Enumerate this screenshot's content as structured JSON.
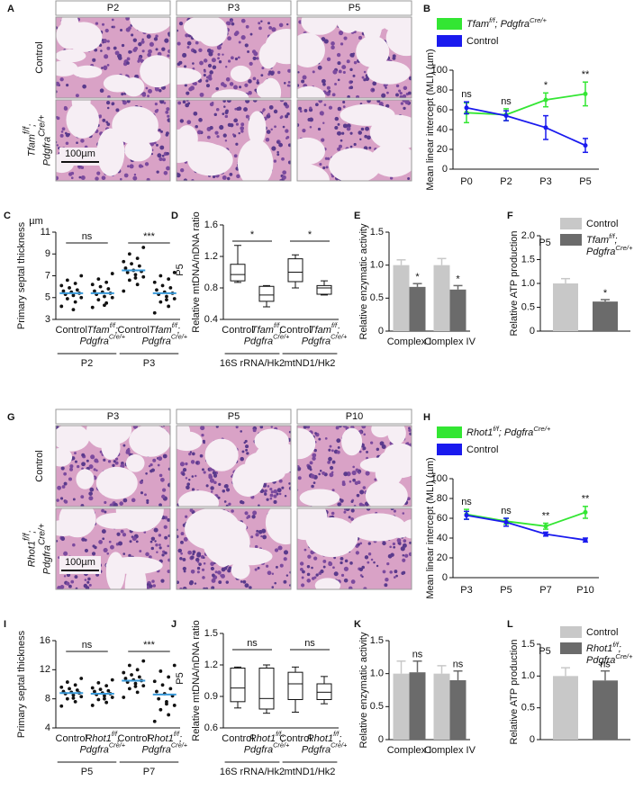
{
  "histology": [
    {
      "letter": "A",
      "columns": [
        "P2",
        "P3",
        "P5"
      ],
      "rows": [
        "Control",
        [
          [
            "Tfam",
            "f/f",
            ";"
          ],
          [
            "Pdgfra",
            "Cre/+"
          ]
        ]
      ],
      "scale_bar": "100µm"
    },
    {
      "letter": "G",
      "columns": [
        "P3",
        "P5",
        "P10"
      ],
      "rows": [
        "Control",
        [
          [
            "Rhot1",
            "f/f",
            ";"
          ],
          [
            "Pdgfra",
            "Cre/+"
          ]
        ]
      ],
      "scale_bar": "100µm"
    }
  ],
  "chart_data": [
    {
      "type": "line",
      "letter": "B",
      "y_label": "Mean linear intercept (MLI) (µm)",
      "categories": [
        "P0",
        "P2",
        "P3",
        "P5"
      ],
      "ylim": [
        0,
        100
      ],
      "yticks": [
        0,
        20,
        40,
        60,
        80,
        100
      ],
      "series": [
        {
          "name": [
            [
              "Tfam",
              "f/f",
              "; Pdgfra",
              "Cre/+"
            ]
          ],
          "color": "#33e633",
          "values": [
            57,
            55,
            70,
            76
          ],
          "errors": [
            10,
            6,
            7,
            12
          ]
        },
        {
          "name": "Control",
          "color": "#1a1aee",
          "values": [
            62,
            54,
            42,
            24
          ],
          "errors": [
            6,
            5,
            12,
            7
          ]
        }
      ],
      "significance": [
        "ns",
        "ns",
        "*",
        "**"
      ]
    },
    {
      "type": "strip",
      "letter": "C",
      "unit": "µm",
      "y_label": "Primary septal thickness",
      "ylim": [
        3,
        11
      ],
      "yticks": [
        3,
        5,
        7,
        9,
        11
      ],
      "point_color": "#111111",
      "mean_color": "#3a9ad9",
      "groups": [
        {
          "name": "P2",
          "categories": [
            "Control",
            [
              [
                "Tfam",
                "f/f",
                ";"
              ],
              [
                "Pdgfra",
                "Cre/+"
              ]
            ]
          ],
          "significance": "ns",
          "means": [
            5.4,
            5.4
          ],
          "points": [
            [
              4.2,
              4.6,
              4.9,
              5.0,
              5.2,
              5.3,
              5.4,
              5.5,
              5.6,
              5.7,
              5.9,
              6.1,
              6.3,
              6.6,
              7.0,
              3.9
            ],
            [
              4.1,
              4.5,
              4.8,
              5.0,
              5.1,
              5.3,
              5.4,
              5.5,
              5.6,
              5.8,
              6.0,
              6.2,
              6.4,
              6.7,
              7.2,
              4.3
            ]
          ]
        },
        {
          "name": "P3",
          "categories": [
            "Control",
            [
              [
                "Tfam",
                "f/f",
                ";"
              ],
              [
                "Pdgfra",
                "Cre/+"
              ]
            ]
          ],
          "significance": "***",
          "means": [
            7.5,
            5.4
          ],
          "points": [
            [
              5.6,
              6.2,
              6.6,
              6.9,
              7.1,
              7.3,
              7.4,
              7.5,
              7.7,
              7.9,
              8.1,
              8.3,
              8.6,
              9.0,
              9.6,
              6.8
            ],
            [
              3.6,
              4.2,
              4.6,
              4.9,
              5.1,
              5.3,
              5.4,
              5.5,
              5.7,
              5.9,
              6.1,
              6.4,
              6.7,
              7.0,
              7.3,
              4.8
            ]
          ]
        }
      ]
    },
    {
      "type": "box",
      "letter": "D",
      "subtitle": "P5",
      "y_label": "Relative mtDNA/nDNA ratio",
      "ylim": [
        0.4,
        1.6
      ],
      "yticks": [
        0.4,
        0.8,
        1.2,
        1.6
      ],
      "groups": [
        {
          "name": "16S rRNA/Hk2",
          "categories": [
            "Control",
            [
              [
                "Tfam",
                "f/f",
                ";"
              ],
              [
                "Pdgfra",
                "Cre/+"
              ]
            ]
          ],
          "significance": "*",
          "boxes": [
            {
              "min": 0.87,
              "q1": 0.89,
              "median": 0.97,
              "q3": 1.1,
              "max": 1.34
            },
            {
              "min": 0.56,
              "q1": 0.63,
              "median": 0.71,
              "q3": 0.82,
              "max": 0.83
            }
          ]
        },
        {
          "name": "mtND1/Hk2",
          "categories": [
            "Control",
            [
              [
                "Tfam",
                "f/f",
                ";"
              ],
              [
                "Pdgfra",
                "Cre/+"
              ]
            ]
          ],
          "significance": "*",
          "boxes": [
            {
              "min": 0.8,
              "q1": 0.88,
              "median": 1.0,
              "q3": 1.17,
              "max": 1.22
            },
            {
              "min": 0.71,
              "q1": 0.72,
              "median": 0.8,
              "q3": 0.83,
              "max": 0.89
            }
          ]
        }
      ]
    },
    {
      "type": "bar",
      "letter": "E",
      "y_label": "Relative enzymatic activity",
      "categories": [
        "Complex I",
        "Complex IV"
      ],
      "ylim": [
        0,
        1.5
      ],
      "yticks": [
        0,
        0.5,
        {
          "value": 1,
          "label": "1.0"
        },
        1.5
      ],
      "series": [
        {
          "color": "#c8c8c8",
          "values": [
            1,
            1
          ],
          "errors": [
            0.08,
            0.1
          ]
        },
        {
          "color": "#6b6b6b",
          "values": [
            0.67,
            0.63
          ],
          "errors": [
            0.05,
            0.06
          ],
          "significance": [
            "*",
            "*"
          ]
        }
      ]
    },
    {
      "type": "bar",
      "letter": "F",
      "subtitle": "P5",
      "y_label": "Relative ATP production",
      "ylim": [
        0,
        2
      ],
      "yticks": [
        0,
        0.5,
        {
          "value": 1,
          "label": "1.0"
        },
        1.5,
        {
          "value": 2,
          "label": "2.0"
        }
      ],
      "series": [
        {
          "name": "Control",
          "color": "#c8c8c8",
          "values": [
            1
          ],
          "errors": [
            0.1
          ]
        },
        {
          "name": [
            [
              "Tfam",
              "f/f",
              ";"
            ],
            [
              "Pdgfra",
              "Cre/+"
            ]
          ],
          "color": "#6b6b6b",
          "values": [
            0.62
          ],
          "errors": [
            0.04
          ],
          "significance": [
            "*"
          ]
        }
      ]
    },
    {
      "type": "line",
      "letter": "H",
      "y_label": "Mean linear intercept (MLI) (µm)",
      "categories": [
        "P3",
        "P5",
        "P7",
        "P10"
      ],
      "ylim": [
        0,
        100
      ],
      "yticks": [
        0,
        20,
        40,
        60,
        80,
        100
      ],
      "series": [
        {
          "name": [
            [
              "Rhot1",
              "f/f",
              "; Pdgfra",
              "Cre/+"
            ]
          ],
          "color": "#33e633",
          "values": [
            64,
            57,
            52,
            66
          ],
          "errors": [
            5,
            3,
            3,
            6
          ]
        },
        {
          "name": "Control",
          "color": "#1a1aee",
          "values": [
            63,
            56,
            44,
            38
          ],
          "errors": [
            4,
            4,
            2,
            2
          ]
        }
      ],
      "significance": [
        "ns",
        "ns",
        "**",
        "**"
      ]
    },
    {
      "type": "strip",
      "letter": "I",
      "y_label": "Primary septal thickness",
      "ylim": [
        4,
        16
      ],
      "yticks": [
        4,
        8,
        12,
        16
      ],
      "point_color": "#111111",
      "mean_color": "#3a9ad9",
      "groups": [
        {
          "name": "P5",
          "categories": [
            "Control",
            [
              [
                "Rhot1",
                "f/f",
                ";"
              ],
              [
                "Pdgfra",
                "Cre/+"
              ]
            ]
          ],
          "significance": "ns",
          "means": [
            8.8,
            8.7
          ],
          "points": [
            [
              7.0,
              7.6,
              8.0,
              8.3,
              8.5,
              8.7,
              8.8,
              8.9,
              9.0,
              9.2,
              9.4,
              9.6,
              9.9,
              10.3,
              10.8,
              8.1
            ],
            [
              7.1,
              7.5,
              7.9,
              8.2,
              8.4,
              8.6,
              8.7,
              8.8,
              9.0,
              9.1,
              9.3,
              9.5,
              9.8,
              10.2,
              10.6,
              8.0
            ]
          ]
        },
        {
          "name": "P7",
          "categories": [
            "Control",
            [
              [
                "Rhot1",
                "f/f",
                ";"
              ],
              [
                "Pdgfra",
                "Cre/+"
              ]
            ]
          ],
          "significance": "***",
          "means": [
            10.5,
            8.6
          ],
          "points": [
            [
              8.2,
              8.9,
              9.4,
              9.8,
              10.1,
              10.3,
              10.5,
              10.6,
              10.8,
              11.0,
              11.3,
              11.6,
              12.0,
              12.6,
              13.2,
              9.7
            ],
            [
              4.9,
              5.8,
              6.5,
              7.1,
              7.6,
              8.0,
              8.4,
              8.7,
              9.0,
              9.4,
              9.9,
              10.4,
              11.0,
              11.8,
              12.6,
              7.3
            ]
          ]
        }
      ]
    },
    {
      "type": "box",
      "letter": "J",
      "subtitle": "P5",
      "y_label": "Relative mtDNA/nDNA ratio",
      "ylim": [
        0.6,
        1.5
      ],
      "yticks": [
        0.6,
        0.9,
        1.2,
        1.5
      ],
      "groups": [
        {
          "name": "16S rRNA/Hk2",
          "categories": [
            "Control",
            [
              [
                "Rhot1",
                "f/f",
                ";"
              ],
              [
                "Pdgfra",
                "Cre/+"
              ]
            ]
          ],
          "significance": "ns",
          "boxes": [
            {
              "min": 0.79,
              "q1": 0.85,
              "median": 0.98,
              "q3": 1.17,
              "max": 1.18
            },
            {
              "min": 0.74,
              "q1": 0.78,
              "median": 0.88,
              "q3": 1.17,
              "max": 1.2
            }
          ]
        },
        {
          "name": "mtND1/Hk2",
          "categories": [
            "Control",
            [
              [
                "Rhot1",
                "f/f",
                ";"
              ],
              [
                "Pdgfra",
                "Cre/+"
              ]
            ]
          ],
          "significance": "ns",
          "boxes": [
            {
              "min": 0.75,
              "q1": 0.87,
              "median": 1.02,
              "q3": 1.13,
              "max": 1.18
            },
            {
              "min": 0.83,
              "q1": 0.87,
              "median": 0.94,
              "q3": 1.02,
              "max": 1.09
            }
          ]
        }
      ]
    },
    {
      "type": "bar",
      "letter": "K",
      "y_label": "Relative enzymatic activity",
      "categories": [
        "Complex I",
        "Complex IV"
      ],
      "ylim": [
        0,
        1.5
      ],
      "yticks": [
        0,
        0.5,
        {
          "value": 1,
          "label": "1.0"
        },
        1.5
      ],
      "series": [
        {
          "color": "#c8c8c8",
          "values": [
            1,
            1
          ],
          "errors": [
            0.19,
            0.12
          ]
        },
        {
          "color": "#6b6b6b",
          "values": [
            1.02,
            0.9
          ],
          "errors": [
            0.17,
            0.14
          ],
          "significance": [
            "ns",
            "ns"
          ]
        }
      ]
    },
    {
      "type": "bar",
      "letter": "L",
      "subtitle": "P5",
      "y_label": "Relative ATP production",
      "ylim": [
        0,
        1.5
      ],
      "yticks": [
        0,
        0.5,
        {
          "value": 1,
          "label": "1.0"
        },
        1.5
      ],
      "series": [
        {
          "name": "Control",
          "color": "#c8c8c8",
          "values": [
            1
          ],
          "errors": [
            0.13
          ]
        },
        {
          "name": [
            [
              "Rhot1",
              "f/f",
              ";"
            ],
            [
              "Pdgfra",
              "Cre/+"
            ]
          ],
          "color": "#6b6b6b",
          "values": [
            0.93
          ],
          "errors": [
            0.15
          ],
          "significance": [
            "ns"
          ]
        }
      ]
    }
  ]
}
